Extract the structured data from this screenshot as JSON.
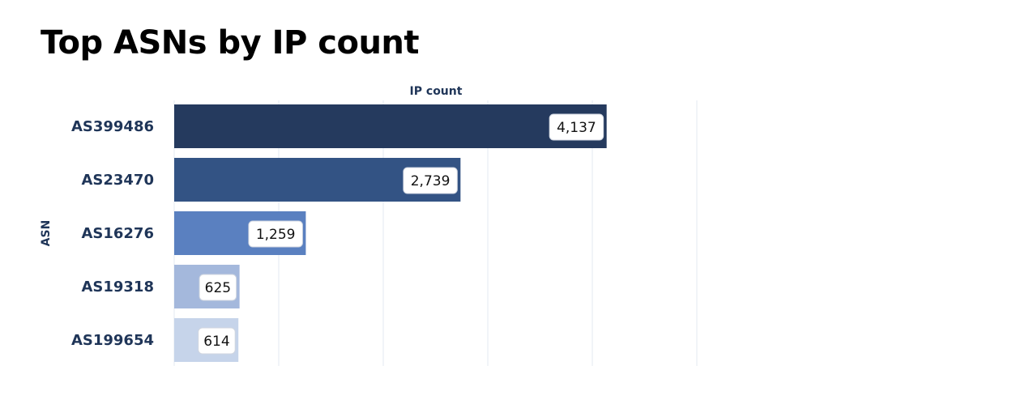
{
  "chart_data": {
    "type": "bar",
    "orientation": "horizontal",
    "title": "Top ASNs by IP count",
    "xlabel": "IP count",
    "ylabel": "ASN",
    "categories": [
      "AS399486",
      "AS23470",
      "AS16276",
      "AS19318",
      "AS199654"
    ],
    "values": [
      4137,
      2739,
      1259,
      625,
      614
    ],
    "value_labels": [
      "4,137",
      "2,739",
      "1,259",
      "625",
      "614"
    ],
    "colors": [
      "#253a5e",
      "#335384",
      "#5a80c0",
      "#a4b8dc",
      "#c6d4ea"
    ],
    "xlim": [
      0,
      5000
    ],
    "grid": true,
    "legend": "none"
  }
}
